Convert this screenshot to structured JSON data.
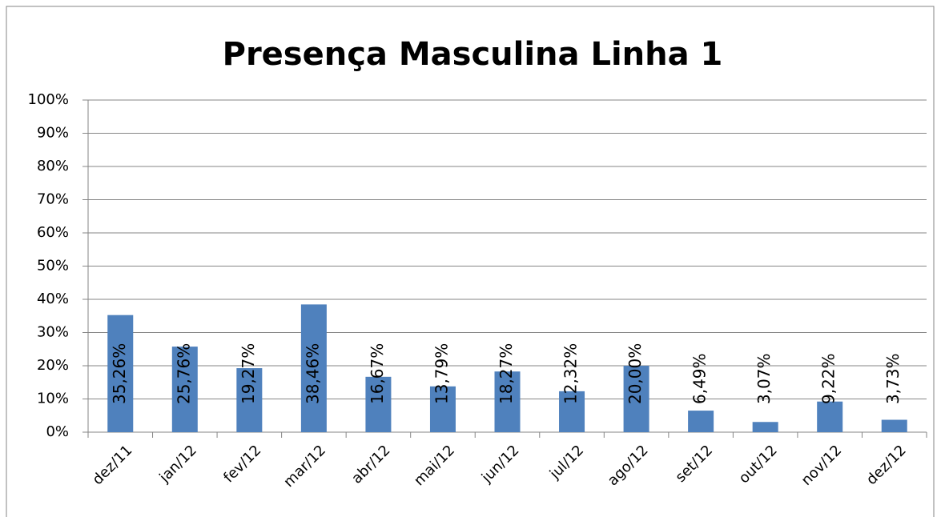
{
  "chart_data": {
    "type": "bar",
    "title": "Presença Masculina Linha 1",
    "categories": [
      "dez/11",
      "jan/12",
      "fev/12",
      "mar/12",
      "abr/12",
      "mai/12",
      "jun/12",
      "jul/12",
      "ago/12",
      "set/12",
      "out/12",
      "nov/12",
      "dez/12"
    ],
    "values": [
      35.26,
      25.76,
      19.27,
      38.46,
      16.67,
      13.79,
      18.27,
      12.32,
      20.0,
      6.49,
      3.07,
      9.22,
      3.73
    ],
    "value_labels": [
      "35,26%",
      "25,76%",
      "19,27%",
      "38,46%",
      "16,67%",
      "13,79%",
      "18,27%",
      "12,32%",
      "20,00%",
      "6,49%",
      "3,07%",
      "9,22%",
      "3,73%"
    ],
    "color": "#4f81bd",
    "ylim": [
      0,
      100
    ],
    "yticks": [
      {
        "value": 0,
        "label": "0%"
      },
      {
        "value": 10,
        "label": "10%"
      },
      {
        "value": 20,
        "label": "20%"
      },
      {
        "value": 30,
        "label": "30%"
      },
      {
        "value": 40,
        "label": "40%"
      },
      {
        "value": 50,
        "label": "50%"
      },
      {
        "value": 60,
        "label": "60%"
      },
      {
        "value": 70,
        "label": "70%"
      },
      {
        "value": 80,
        "label": "80%"
      },
      {
        "value": 90,
        "label": "90%"
      },
      {
        "value": 100,
        "label": "100%"
      }
    ],
    "grid": true
  }
}
